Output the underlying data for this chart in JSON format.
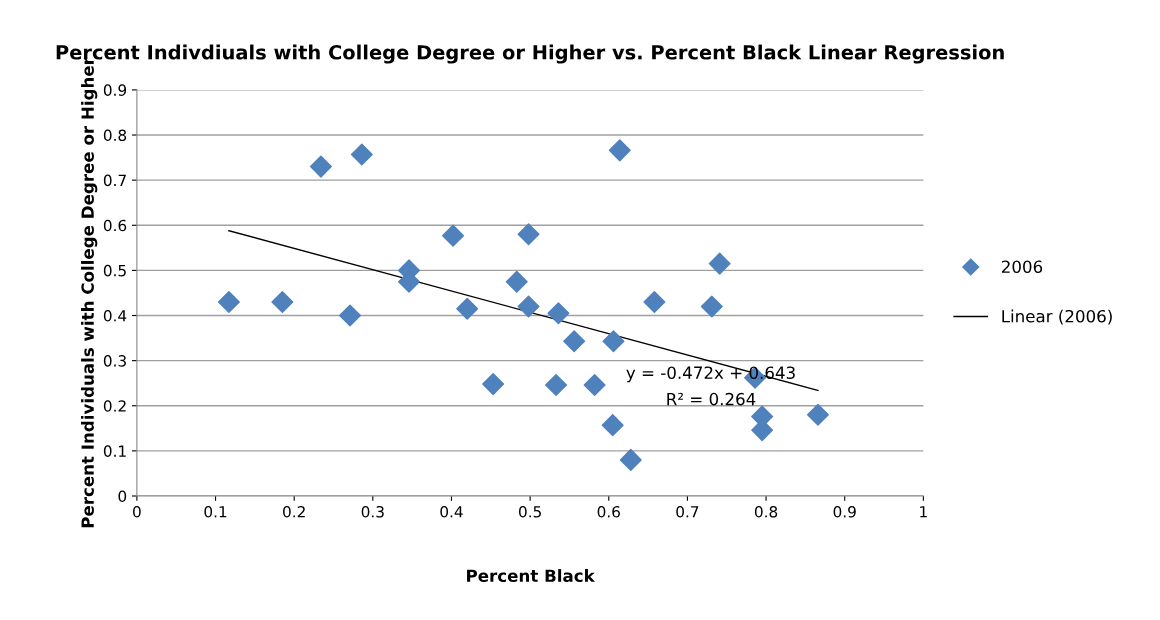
{
  "chart_data": {
    "type": "scatter",
    "title": "Percent Indivdiuals with College Degree or Higher vs. Percent Black Linear Regression",
    "xlabel": "Percent Black",
    "ylabel": "Percent Individuals with College Degree or Higher",
    "xlim": [
      0,
      1
    ],
    "xticks": [
      0,
      0.1,
      0.2,
      0.3,
      0.4,
      0.5,
      0.6,
      0.7,
      0.8,
      0.9,
      1
    ],
    "ylim": [
      0,
      0.9
    ],
    "yticks": [
      0,
      0.1,
      0.2,
      0.3,
      0.4,
      0.5,
      0.6,
      0.7,
      0.8,
      0.9
    ],
    "grid": "y",
    "legend": "right",
    "marker": "diamond",
    "series": [
      {
        "name": "2006",
        "color": "#4f81bd",
        "x": [
          0.117,
          0.185,
          0.234,
          0.286,
          0.271,
          0.346,
          0.346,
          0.402,
          0.42,
          0.453,
          0.483,
          0.498,
          0.498,
          0.536,
          0.533,
          0.556,
          0.582,
          0.606,
          0.605,
          0.614,
          0.628,
          0.658,
          0.731,
          0.741,
          0.786,
          0.795,
          0.795,
          0.866
        ],
        "values": [
          0.43,
          0.43,
          0.73,
          0.757,
          0.4,
          0.5,
          0.475,
          0.577,
          0.415,
          0.248,
          0.475,
          0.58,
          0.42,
          0.405,
          0.246,
          0.343,
          0.246,
          0.343,
          0.157,
          0.766,
          0.08,
          0.43,
          0.42,
          0.515,
          0.262,
          0.176,
          0.146,
          0.18
        ]
      },
      {
        "name": "Linear (2006)",
        "type": "line",
        "color": "#000000",
        "marker": "none",
        "x": [
          0.117,
          0.866
        ],
        "values": [
          0.588,
          0.234
        ]
      }
    ],
    "annotations": [
      "y = -0.472x + 0.643",
      "R² = 0.264"
    ]
  }
}
